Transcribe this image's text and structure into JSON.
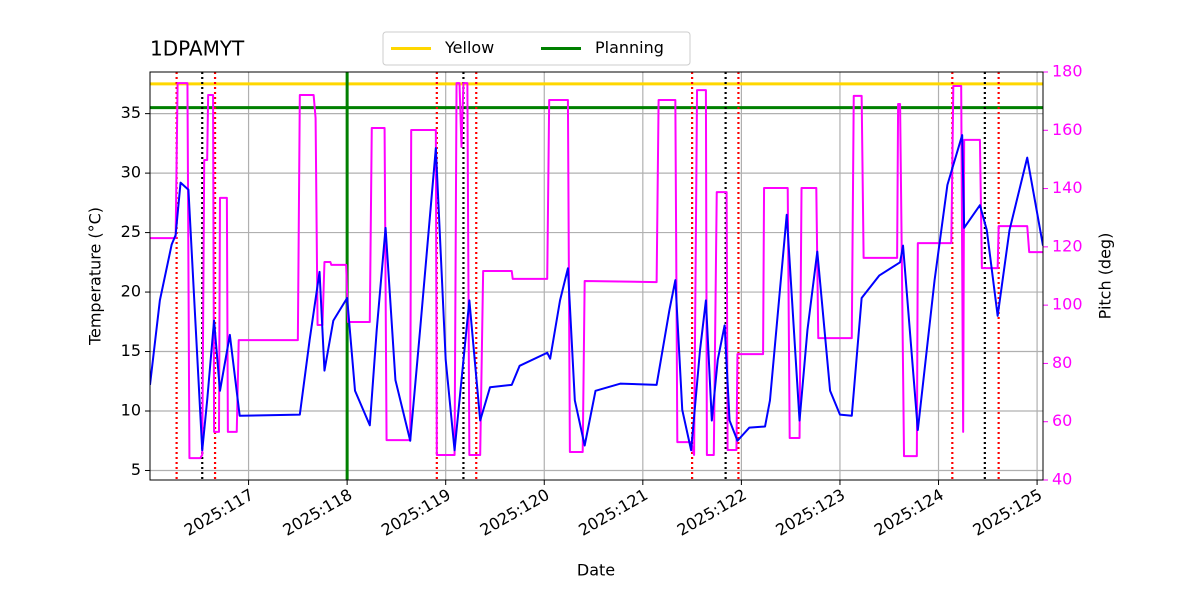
{
  "chart_data": {
    "type": "line",
    "title": "1DPAMYT",
    "xlabel": "Date",
    "ylabel": "Temperature (°C)",
    "y2label": "Pitch (deg)",
    "xlim": [
      116.0,
      125.06
    ],
    "xticks": [
      {
        "value": 117,
        "label": "2025:117"
      },
      {
        "value": 118,
        "label": "2025:118"
      },
      {
        "value": 119,
        "label": "2025:119"
      },
      {
        "value": 120,
        "label": "2025:120"
      },
      {
        "value": 121,
        "label": "2025:121"
      },
      {
        "value": 122,
        "label": "2025:122"
      },
      {
        "value": 123,
        "label": "2025:123"
      },
      {
        "value": 124,
        "label": "2025:124"
      },
      {
        "value": 125,
        "label": "2025:125"
      }
    ],
    "ylim": [
      4.2,
      38.5
    ],
    "yticks": [
      5,
      10,
      15,
      20,
      25,
      30,
      35
    ],
    "y2lim": [
      40,
      180
    ],
    "y2ticks": [
      40,
      60,
      80,
      100,
      120,
      140,
      160,
      180
    ],
    "y2color": "#ff00ff",
    "grid": true,
    "legend": "upper center",
    "hlines": [
      {
        "name": "Yellow",
        "color": "#ffd700",
        "value": 37.5
      },
      {
        "name": "Planning",
        "color": "#008000",
        "value": 35.5
      }
    ],
    "vlines": [
      {
        "color": "#008000",
        "style": "solid",
        "values": [
          118.0
        ]
      },
      {
        "color": "#ff0000",
        "style": "dotted",
        "values": [
          116.27,
          116.66,
          118.91,
          119.31,
          121.5,
          121.97,
          124.14,
          124.61
        ]
      },
      {
        "color": "#000000",
        "style": "dotted",
        "values": [
          116.53,
          119.18,
          121.84,
          124.47
        ]
      }
    ],
    "series": [
      {
        "color": "#0000ff",
        "x": [
          116.0,
          116.1,
          116.22,
          116.26,
          116.31,
          116.39,
          116.46,
          116.53,
          116.58,
          116.65,
          116.71,
          116.81,
          116.91,
          117.52,
          117.62,
          117.72,
          117.77,
          117.86,
          118.0,
          118.08,
          118.23,
          118.3,
          118.39,
          118.49,
          118.64,
          118.74,
          118.9,
          119.0,
          119.09,
          119.24,
          119.35,
          119.45,
          119.67,
          119.75,
          120.03,
          120.06,
          120.16,
          120.24,
          120.31,
          120.41,
          120.52,
          120.77,
          121.14,
          121.27,
          121.33,
          121.4,
          121.49,
          121.58,
          121.64,
          121.7,
          121.76,
          121.83,
          121.88,
          121.96,
          122.08,
          122.24,
          122.29,
          122.46,
          122.59,
          122.67,
          122.77,
          122.9,
          123.0,
          123.12,
          123.22,
          123.4,
          123.61,
          123.64,
          123.79,
          123.96,
          124.09,
          124.24,
          124.26,
          124.42,
          124.49,
          124.6,
          124.72,
          124.9,
          125.06
        ],
        "values": [
          12.2,
          19.3,
          24.0,
          24.8,
          29.2,
          28.6,
          17.6,
          6.7,
          10.9,
          17.6,
          11.7,
          16.4,
          9.6,
          9.7,
          16.0,
          21.7,
          13.4,
          17.6,
          19.5,
          11.7,
          8.8,
          16.8,
          25.4,
          12.6,
          7.5,
          16.8,
          32.1,
          14.3,
          6.7,
          19.3,
          9.2,
          12.0,
          12.2,
          13.8,
          14.9,
          14.4,
          19.3,
          22.0,
          10.9,
          7.1,
          11.7,
          12.3,
          12.2,
          18.5,
          21.0,
          10.1,
          6.7,
          15.1,
          19.3,
          9.2,
          14.3,
          17.2,
          9.2,
          7.5,
          8.6,
          8.7,
          10.9,
          26.5,
          9.2,
          16.8,
          23.4,
          11.7,
          9.7,
          9.6,
          19.5,
          21.4,
          22.5,
          23.9,
          8.4,
          21.0,
          29.0,
          33.2,
          25.4,
          27.3,
          25.2,
          18.0,
          25.2,
          31.3,
          23.9
        ]
      },
      {
        "color": "#ff00ff",
        "axis": "y2",
        "x": [
          116.0,
          116.22,
          116.26,
          116.28,
          116.38,
          116.4,
          116.51,
          116.53,
          116.55,
          116.58,
          116.59,
          116.64,
          116.65,
          116.7,
          116.71,
          116.78,
          116.79,
          116.88,
          116.9,
          117.5,
          117.52,
          117.66,
          117.68,
          117.7,
          117.75,
          117.77,
          117.83,
          117.84,
          117.99,
          118.01,
          118.23,
          118.25,
          118.38,
          118.4,
          118.64,
          118.65,
          118.9,
          118.91,
          119.09,
          119.11,
          119.14,
          119.16,
          119.18,
          119.22,
          119.24,
          119.35,
          119.38,
          119.67,
          119.68,
          120.03,
          120.05,
          120.24,
          120.26,
          120.39,
          120.41,
          121.14,
          121.16,
          121.33,
          121.35,
          121.49,
          121.52,
          121.55,
          121.64,
          121.65,
          121.72,
          121.75,
          121.85,
          121.86,
          121.95,
          121.96,
          122.22,
          122.23,
          122.47,
          122.49,
          122.59,
          122.61,
          122.76,
          122.78,
          123.12,
          123.14,
          123.22,
          123.24,
          123.58,
          123.59,
          123.61,
          123.65,
          123.78,
          123.79,
          124.13,
          124.15,
          124.23,
          124.25,
          124.26,
          124.42,
          124.44,
          124.6,
          124.61,
          124.9,
          124.92,
          125.06
        ],
        "values": [
          123.0,
          123.0,
          123.0,
          176.2,
          176.2,
          47.5,
          47.5,
          48.6,
          149.8,
          149.8,
          172.1,
          172.1,
          56.5,
          56.5,
          136.8,
          136.8,
          56.5,
          56.5,
          88.0,
          88.0,
          172.1,
          172.1,
          164.2,
          93.2,
          93.2,
          114.8,
          114.8,
          113.8,
          113.8,
          94.2,
          94.2,
          160.8,
          160.8,
          53.7,
          53.7,
          160.1,
          160.1,
          48.6,
          48.6,
          176.2,
          176.2,
          154.3,
          176.2,
          176.2,
          48.6,
          48.6,
          111.7,
          111.7,
          109.0,
          109.0,
          170.4,
          170.4,
          49.6,
          49.6,
          108.3,
          107.9,
          170.4,
          170.4,
          53.0,
          53.0,
          48.6,
          173.8,
          173.8,
          48.6,
          48.6,
          138.8,
          138.8,
          50.3,
          50.3,
          83.2,
          83.2,
          140.2,
          140.2,
          54.4,
          54.4,
          140.2,
          140.2,
          88.7,
          88.7,
          171.8,
          171.8,
          116.2,
          116.2,
          169.0,
          169.0,
          48.2,
          48.2,
          121.3,
          121.3,
          175.2,
          175.2,
          56.5,
          156.7,
          156.7,
          112.7,
          112.7,
          127.1,
          127.1,
          118.2,
          118.2
        ]
      }
    ]
  }
}
